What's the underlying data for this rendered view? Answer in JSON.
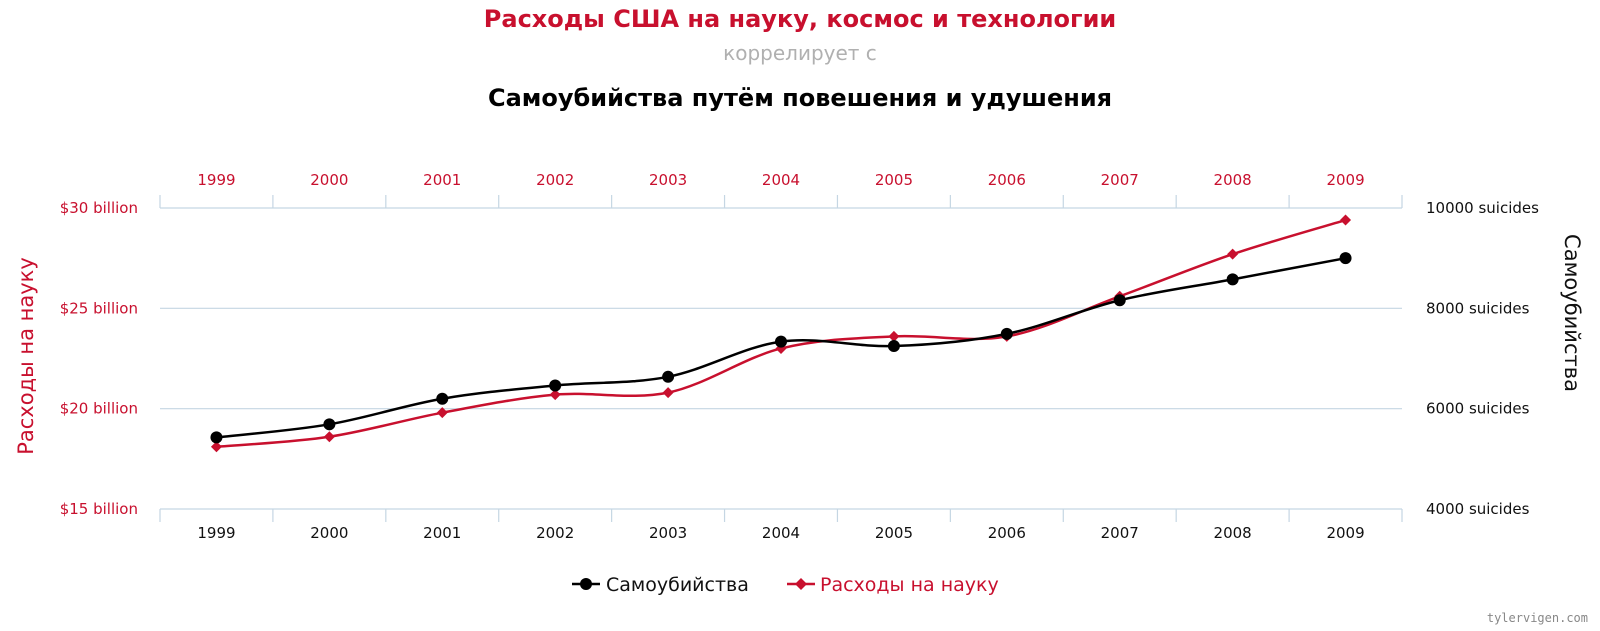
{
  "titles": {
    "main": "Расходы США на науку, космос и технологии",
    "correlates": "коррелирует с",
    "second": "Самоубийства путём повешения и удушения"
  },
  "credit": "tylervigen.com",
  "colors": {
    "spending": "#c8102e",
    "suicides": "#000000",
    "subtitle": "#b0b0b0",
    "grid": "#c5d6e3"
  },
  "chart_data": {
    "type": "line",
    "x": [
      1999,
      2000,
      2001,
      2002,
      2003,
      2004,
      2005,
      2006,
      2007,
      2008,
      2009
    ],
    "x_tick_labels_top": [
      "1999",
      "2000",
      "2001",
      "2002",
      "2003",
      "2004",
      "2005",
      "2006",
      "2007",
      "2008",
      "2009"
    ],
    "x_tick_labels_bottom": [
      "1999",
      "2000",
      "2001",
      "2002",
      "2003",
      "2004",
      "2005",
      "2006",
      "2007",
      "2008",
      "2009"
    ],
    "y_left": {
      "label": "Расходы на науку",
      "ticks": [
        15,
        20,
        25,
        30
      ],
      "tick_labels": [
        "$15 billion",
        "$20 billion",
        "$25 billion",
        "$30 billion"
      ],
      "range": [
        15,
        30
      ]
    },
    "y_right": {
      "label": "Самоубийства",
      "ticks": [
        4000,
        6000,
        8000,
        10000
      ],
      "tick_labels": [
        "4000 suicides",
        "6000 suicides",
        "8000 suicides",
        "10000 suicides"
      ],
      "range": [
        4000,
        10000
      ]
    },
    "series": [
      {
        "name": "Самоубийства",
        "axis": "right",
        "marker": "circle",
        "color": "#000000",
        "values": [
          5427,
          5688,
          6198,
          6462,
          6635,
          7336,
          7248,
          7491,
          8161,
          8578,
          9000
        ]
      },
      {
        "name": "Расходы на науку",
        "axis": "left",
        "marker": "diamond",
        "color": "#c8102e",
        "values": [
          18.1,
          18.6,
          19.8,
          20.7,
          20.8,
          23.0,
          23.6,
          23.6,
          25.6,
          27.7,
          29.4
        ]
      }
    ],
    "grid": true,
    "legend_position": "bottom-center"
  }
}
